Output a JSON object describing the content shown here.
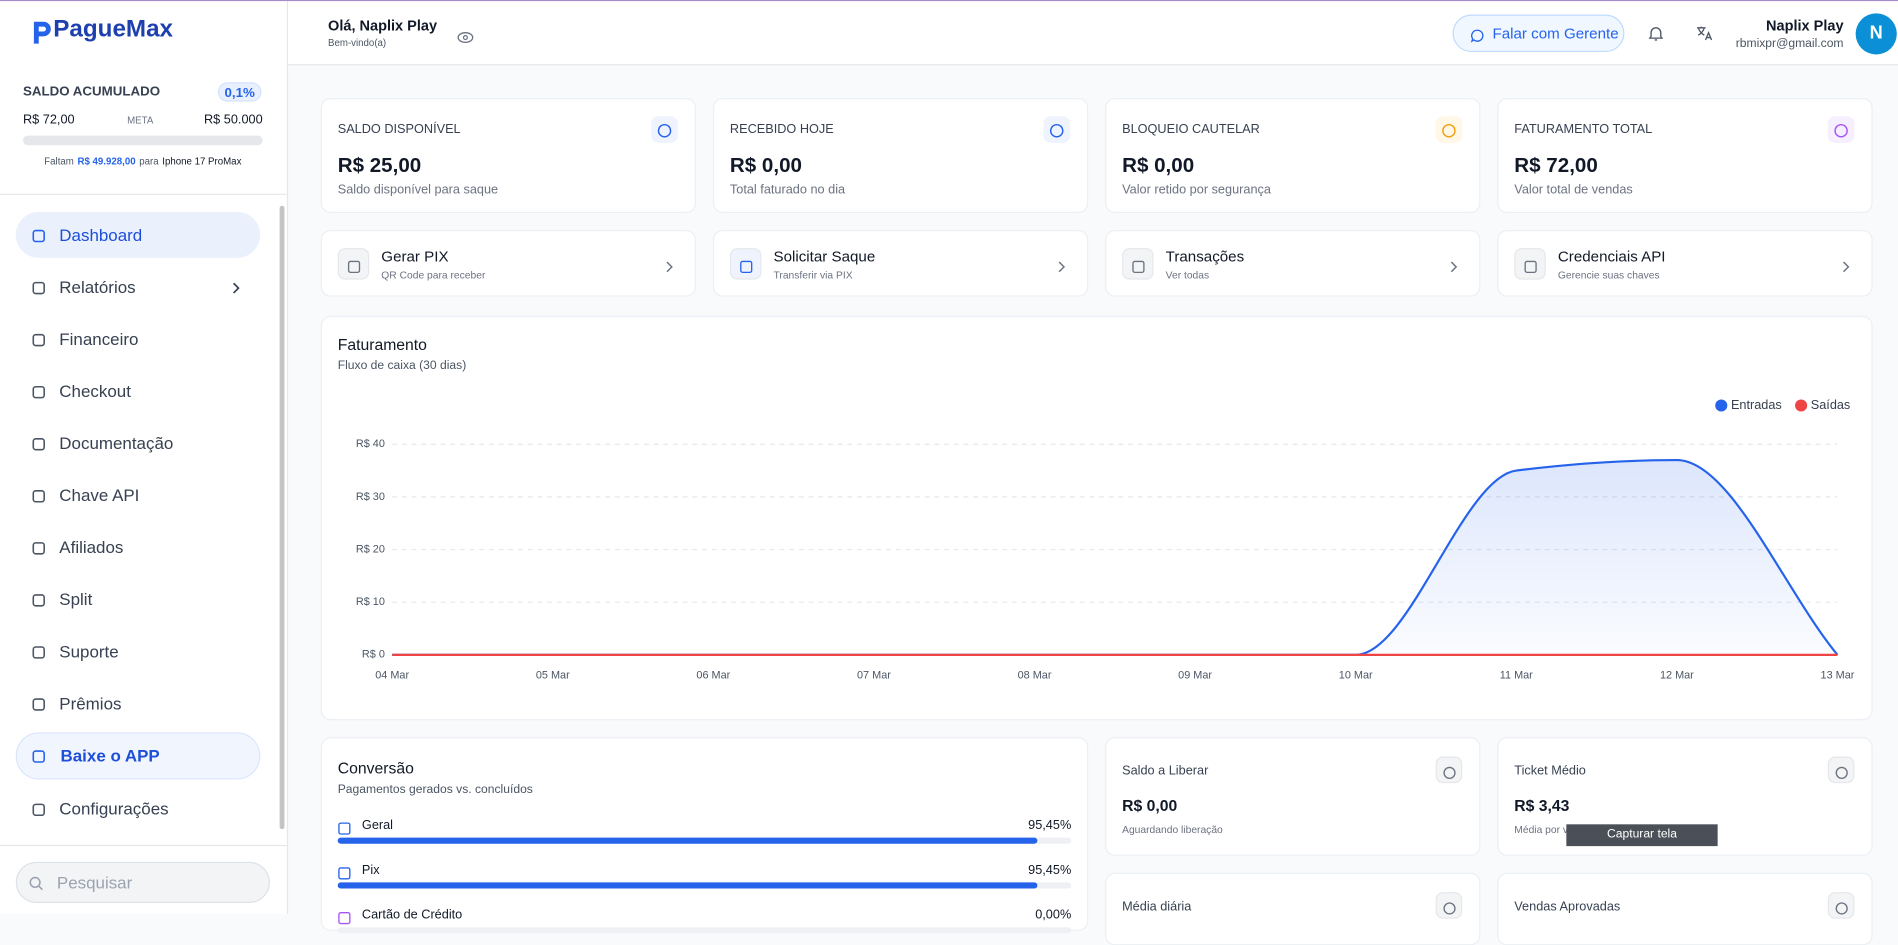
{
  "sidebar": {
    "brand": "PagueMax",
    "saldo": {
      "title": "SALDO ACUMULADO",
      "percent": "0,1%",
      "current": "R$ 72,00",
      "meta_label": "META",
      "goal": "R$ 50.000",
      "note_prefix": "Faltam",
      "note_amount": "R$ 49.928,00",
      "note_mid": "para",
      "note_target": "Iphone 17 ProMax"
    },
    "menu": [
      "Dashboard",
      "Relatórios",
      "Financeiro",
      "Checkout",
      "Documentação",
      "Chave API",
      "Afiliados",
      "Split",
      "Suporte",
      "Prêmios",
      "Baixe o APP",
      "Configurações"
    ],
    "search_placeholder": "Pesquisar"
  },
  "header": {
    "greeting": "Olá, Naplix Play",
    "subtitle": "Bem-vindo(a)",
    "contact_button": "Falar com Gerente",
    "user_name": "Naplix Play",
    "user_email": "rbmixpr@gmail.com",
    "avatar": "N"
  },
  "stats": [
    {
      "label": "SALDO DISPONÍVEL",
      "value": "R$ 25,00",
      "caption": "Saldo disponível para saque"
    },
    {
      "label": "RECEBIDO HOJE",
      "value": "R$ 0,00",
      "caption": "Total faturado no dia"
    },
    {
      "label": "BLOQUEIO CAUTELAR",
      "value": "R$ 0,00",
      "caption": "Valor retido por segurança"
    },
    {
      "label": "FATURAMENTO TOTAL",
      "value": "R$ 72,00",
      "caption": "Valor total de vendas"
    }
  ],
  "actions": [
    {
      "title": "Gerar PIX",
      "subtitle": "QR Code para receber"
    },
    {
      "title": "Solicitar Saque",
      "subtitle": "Transferir via PIX"
    },
    {
      "title": "Transações",
      "subtitle": "Ver todas"
    },
    {
      "title": "Credenciais API",
      "subtitle": "Gerencie suas chaves"
    }
  ],
  "chart_data": {
    "type": "line",
    "title": "Faturamento",
    "subtitle": "Fluxo de caixa (30 dias)",
    "categories": [
      "04 Mar",
      "05 Mar",
      "06 Mar",
      "07 Mar",
      "08 Mar",
      "09 Mar",
      "10 Mar",
      "11 Mar",
      "12 Mar",
      "13 Mar"
    ],
    "series": [
      {
        "name": "Entradas",
        "color": "#2563eb",
        "values": [
          0,
          0,
          0,
          0,
          0,
          0,
          0,
          35,
          37,
          0
        ]
      },
      {
        "name": "Saídas",
        "color": "#ef4444",
        "values": [
          0,
          0,
          0,
          0,
          0,
          0,
          0,
          0,
          0,
          0
        ]
      }
    ],
    "ylim": [
      0,
      40
    ],
    "yticks": [
      {
        "value": 0,
        "label": "R$ 0"
      },
      {
        "value": 10,
        "label": "R$ 10"
      },
      {
        "value": 20,
        "label": "R$ 20"
      },
      {
        "value": 30,
        "label": "R$ 30"
      },
      {
        "value": 40,
        "label": "R$ 40"
      }
    ],
    "grid": true,
    "legend": "top-right"
  },
  "conversion": {
    "title": "Conversão",
    "subtitle": "Pagamentos gerados vs. concluídos",
    "rows": [
      {
        "label": "Geral",
        "value": 95.45,
        "value_label": "95,45%"
      },
      {
        "label": "Pix",
        "value": 95.45,
        "value_label": "95,45%"
      },
      {
        "label": "Cartão de Crédito",
        "value": 0,
        "value_label": "0,00%"
      }
    ]
  },
  "mini_cards": [
    {
      "label": "Saldo a Liberar",
      "value": "R$ 0,00",
      "caption": "Aguardando liberação"
    },
    {
      "label": "Ticket Médio",
      "value": "R$ 3,43",
      "caption": "Média por venda"
    },
    {
      "label": "Média diária"
    },
    {
      "label": "Vendas Aprovadas"
    }
  ],
  "tooltip": "Capturar tela"
}
